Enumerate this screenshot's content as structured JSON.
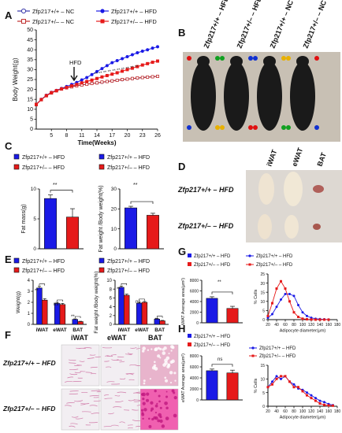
{
  "panel_letters": [
    "A",
    "B",
    "C",
    "D",
    "E",
    "F",
    "G",
    "H"
  ],
  "colors": {
    "wt": "#1a1ae6",
    "het": "#e61a1a",
    "wt_nc": "#3a3aaa",
    "het_nc": "#c03030",
    "mouse": "#1a1a1a",
    "bg_photo": "#c8c0b4"
  },
  "panel_a": {
    "legend": [
      "Zfp217+/+ – NC",
      "Zfp217+/+ – HFD",
      "Zfp217+/– – NC",
      "Zfp217+/– – HFD"
    ],
    "annotation": "HFD",
    "significance": "** ** ** ** ** ** **  ** ** **"
  },
  "panel_b": {
    "labels": [
      "Zfp217+/+ – HFD",
      "Zfp217+/– – HFD",
      "Zfp217+/+ – NC",
      "Zfp217+/– – NC"
    ]
  },
  "panel_c": {
    "legend": [
      "Zfp217+/+ – HFD",
      "Zfp217+/– – HFD"
    ],
    "sig": "**"
  },
  "panel_d": {
    "cols": [
      "iWAT",
      "eWAT",
      "BAT"
    ],
    "rows": [
      "Zfp217+/+ – HFD",
      "Zfp217+/– – HFD"
    ]
  },
  "panel_e": {
    "legend": [
      "Zfp217+/+ – HFD",
      "Zfp217+/– – HFD"
    ],
    "sig": [
      "**",
      "ns",
      "**"
    ]
  },
  "panel_f": {
    "cols": [
      "iWAT",
      "eWAT",
      "BAT"
    ],
    "rows": [
      "Zfp217+/+ – HFD",
      "Zfp217+/– – HFD"
    ]
  },
  "panel_g": {
    "legend": [
      "Zfp217+/+ – HFD",
      "Zfp217+/– – HFD"
    ],
    "sig": "**"
  },
  "panel_h": {
    "legend": [
      "Zfp217+/+ – HFD",
      "Zfp217+/– – HFD"
    ],
    "sig": "ns"
  },
  "chart_data": [
    {
      "id": "A",
      "type": "line",
      "x": [
        1,
        2,
        3,
        4,
        5,
        6,
        7,
        8,
        9,
        10,
        11,
        12,
        13,
        14,
        15,
        16,
        17,
        18,
        19,
        20,
        21,
        22,
        23,
        24,
        25,
        26
      ],
      "xticks": [
        5,
        8,
        11,
        14,
        17,
        20,
        23,
        26
      ],
      "xlabel": "Time(Weeks)",
      "ylabel": "Body Weight(g)",
      "xlim": [
        2,
        26
      ],
      "ylim": [
        0,
        50
      ],
      "yticks": [
        0,
        5,
        10,
        15,
        20,
        25,
        30,
        35,
        40,
        45,
        50
      ],
      "series": [
        {
          "name": "Zfp217+/+ – NC",
          "color": "#3a3aaa",
          "marker": "open-circle",
          "values": [
            9.5,
            12.5,
            15,
            17,
            18.5,
            19.5,
            20.5,
            21,
            21.5,
            22,
            22.3,
            22.6,
            23,
            23.3,
            23.6,
            24,
            24.3,
            24.6,
            24.9,
            25.2,
            25.5,
            25.7,
            26,
            26.2,
            26.4,
            26.6
          ]
        },
        {
          "name": "Zfp217+/+ – HFD",
          "color": "#1a1ae6",
          "marker": "filled-circle",
          "values": [
            9.5,
            12.5,
            15,
            17,
            18.5,
            19.5,
            20.5,
            21.5,
            22.5,
            23.5,
            24.8,
            26,
            27.5,
            29,
            30.5,
            32,
            33.5,
            34.5,
            35.5,
            36.5,
            37.5,
            38.5,
            39.3,
            40,
            40.8,
            41.5
          ]
        },
        {
          "name": "Zfp217+/– – NC",
          "color": "#c03030",
          "marker": "open-square",
          "values": [
            9.5,
            12.3,
            14.8,
            16.8,
            18.2,
            19.3,
            20.2,
            20.8,
            21.3,
            21.8,
            22.2,
            22.6,
            23,
            23.3,
            23.7,
            24,
            24.3,
            24.6,
            25,
            25.2,
            25.5,
            25.8,
            26,
            26.2,
            26.4,
            26.6
          ]
        },
        {
          "name": "Zfp217+/– – HFD",
          "color": "#e61a1a",
          "marker": "filled-square",
          "values": [
            9.5,
            12.5,
            14.9,
            16.9,
            18.4,
            19.4,
            20.3,
            21,
            21.8,
            22.5,
            23.3,
            24,
            24.7,
            25.5,
            26.3,
            27,
            27.7,
            28.4,
            29.2,
            30,
            30.7,
            31.5,
            32.3,
            33,
            33.7,
            34.3
          ]
        }
      ]
    },
    {
      "id": "C1",
      "type": "bar",
      "categories": [
        "Zfp217+/+ – HFD",
        "Zfp217+/– – HFD"
      ],
      "values": [
        8.4,
        5.3
      ],
      "errors": [
        0.6,
        1.4
      ],
      "ylabel": "Fat mass(g)",
      "ylim": [
        0,
        10
      ],
      "yticks": [
        0,
        5,
        10
      ]
    },
    {
      "id": "C2",
      "type": "bar",
      "categories": [
        "Zfp217+/+ – HFD",
        "Zfp217+/– – HFD"
      ],
      "values": [
        20.5,
        16.8
      ],
      "errors": [
        0.8,
        1.0
      ],
      "ylabel": "Fat weight /Body weight(%)",
      "ylim": [
        0,
        30
      ],
      "yticks": [
        0,
        10,
        20,
        30
      ]
    },
    {
      "id": "E1",
      "type": "bar",
      "categories": [
        "iWAT",
        "eWAT",
        "BAT"
      ],
      "series": [
        {
          "name": "Zfp217+/+ – HFD",
          "values": [
            3.3,
            1.9,
            0.45
          ],
          "errors": [
            0.15,
            0.1,
            0.05
          ]
        },
        {
          "name": "Zfp217+/– – HFD",
          "values": [
            2.2,
            1.8,
            0.25
          ],
          "errors": [
            0.12,
            0.1,
            0.03
          ]
        }
      ],
      "ylabel": "Weight(g)",
      "ylim": [
        0,
        4
      ],
      "yticks": [
        0,
        1,
        2,
        3,
        4
      ]
    },
    {
      "id": "E2",
      "type": "bar",
      "categories": [
        "iWAT",
        "eWAT",
        "BAT"
      ],
      "series": [
        {
          "name": "Zfp217+/+ – HFD",
          "values": [
            8.4,
            4.8,
            1.2
          ],
          "errors": [
            0.3,
            0.2,
            0.1
          ]
        },
        {
          "name": "Zfp217+/– – HFD",
          "values": [
            6.6,
            5.0,
            0.8
          ],
          "errors": [
            0.25,
            0.2,
            0.1
          ]
        }
      ],
      "ylabel": "Fat weight /Body weight(%)",
      "ylim": [
        0,
        10
      ],
      "yticks": [
        0,
        2,
        4,
        6,
        8,
        10
      ]
    },
    {
      "id": "G1",
      "type": "bar",
      "categories": [
        "Zfp217+/+ – HFD",
        "Zfp217+/– – HFD"
      ],
      "values": [
        4600,
        2700
      ],
      "errors": [
        300,
        400
      ],
      "ylabel": "iWAT Average area(μm²)",
      "ylim": [
        0,
        8000
      ],
      "yticks": [
        0,
        2000,
        4000,
        6000,
        8000
      ]
    },
    {
      "id": "G2",
      "type": "line",
      "x": [
        20,
        30,
        40,
        50,
        60,
        70,
        80,
        90,
        100,
        110,
        120,
        130,
        140,
        150,
        160
      ],
      "xticks": [
        20,
        40,
        60,
        80,
        100,
        120,
        140,
        160,
        180
      ],
      "xlabel": "Adipocyte diameter(μm)",
      "ylabel": "% Cells",
      "xlim": [
        20,
        180
      ],
      "ylim": [
        0,
        25
      ],
      "yticks": [
        0,
        5,
        10,
        15,
        20,
        25
      ],
      "series": [
        {
          "name": "Zfp217+/+ – HFD",
          "color": "#1a1ae6",
          "values": [
            1,
            3,
            7,
            11,
            14,
            14,
            13,
            8,
            4,
            2,
            1,
            0.5,
            0.3,
            0.2,
            0.1
          ]
        },
        {
          "name": "Zfp217+/– – HFD",
          "color": "#e61a1a",
          "values": [
            2,
            9,
            17,
            21,
            17,
            10,
            4,
            1.5,
            0.5,
            0.2,
            0.1,
            0,
            0,
            0,
            0
          ]
        }
      ]
    },
    {
      "id": "H1",
      "type": "bar",
      "categories": [
        "Zfp217+/+ – HFD",
        "Zfp217+/– – HFD"
      ],
      "values": [
        5300,
        4900
      ],
      "errors": [
        300,
        500
      ],
      "ylabel": "eWAT Average area(μm²)",
      "ylim": [
        0,
        8000
      ],
      "yticks": [
        0,
        2000,
        4000,
        6000,
        8000
      ]
    },
    {
      "id": "H2",
      "type": "line",
      "x": [
        20,
        30,
        40,
        50,
        60,
        70,
        80,
        90,
        100,
        110,
        120,
        130,
        140,
        150,
        160,
        170
      ],
      "xticks": [
        20,
        40,
        60,
        80,
        100,
        120,
        140,
        160,
        180
      ],
      "xlabel": "Adipocyte diameter(μm)",
      "ylabel": "% Cells",
      "xlim": [
        20,
        180
      ],
      "ylim": [
        0,
        15
      ],
      "yticks": [
        0,
        5,
        10,
        15
      ],
      "series": [
        {
          "name": "Zfp217+/+ – HFD",
          "color": "#1a1ae6",
          "values": [
            7,
            9,
            11,
            10,
            11,
            9,
            8,
            6.5,
            6,
            5,
            4,
            3,
            2,
            1.5,
            0.8,
            0.4
          ]
        },
        {
          "name": "Zfp217+/– – HFD",
          "color": "#e61a1a",
          "values": [
            7,
            8,
            10,
            11,
            11,
            9,
            7,
            7,
            5.5,
            4,
            3,
            2,
            1,
            0.5,
            0.3,
            0.2
          ]
        }
      ]
    }
  ]
}
